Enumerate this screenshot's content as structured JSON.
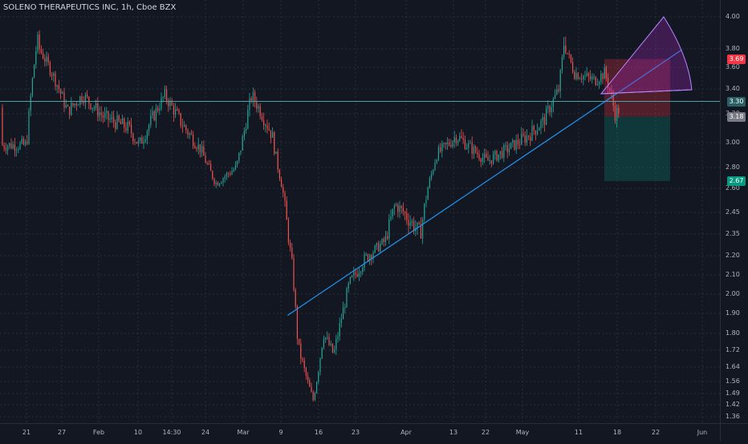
{
  "title": "SOLENO THERAPEUTICS INC, 1h, Cboe BZX",
  "chart_data": {
    "type": "candlestick",
    "title": "SOLENO THERAPEUTICS INC, 1h, Cboe BZX",
    "x_labels": [
      "21",
      "27",
      "Feb",
      "10",
      "14:30",
      "24",
      "Mar",
      "9",
      "16",
      "23",
      "Apr",
      "13",
      "22",
      "May",
      "11",
      "18",
      "22",
      "Jun"
    ],
    "y_ticks": [
      1.36,
      1.42,
      1.49,
      1.56,
      1.64,
      1.72,
      1.8,
      1.9,
      2.0,
      2.1,
      2.2,
      2.35,
      2.45,
      2.6,
      2.8,
      3.0,
      3.2,
      3.4,
      3.6,
      3.8,
      4.0
    ],
    "price_badges": [
      {
        "value": "3.69",
        "color": "#f23645"
      },
      {
        "value": "3.30",
        "color": "#2a5f63"
      },
      {
        "value": "3.18",
        "color": "#787b86"
      },
      {
        "value": "2.67",
        "color": "#089981"
      }
    ],
    "horizontal_line": 3.3,
    "trendline": {
      "from": {
        "x": "Mar 12",
        "y": 1.89
      },
      "to": {
        "x": "May 28",
        "y": 3.79
      }
    },
    "position_box": {
      "entry": 3.18,
      "stop": 3.69,
      "target": 2.67
    },
    "anchor_points": [
      {
        "date": "Jan 21",
        "price": 2.98
      },
      {
        "date": "Jan 23",
        "price": 3.85
      },
      {
        "date": "Jan 26",
        "price": 3.55
      },
      {
        "date": "Jan 29",
        "price": 3.22
      },
      {
        "date": "Feb 1",
        "price": 3.35
      },
      {
        "date": "Feb 5",
        "price": 3.18
      },
      {
        "date": "Feb 10",
        "price": 3.1
      },
      {
        "date": "Feb 12",
        "price": 2.98
      },
      {
        "date": "Feb 17",
        "price": 3.35
      },
      {
        "date": "Feb 20",
        "price": 3.15
      },
      {
        "date": "Feb 24",
        "price": 2.95
      },
      {
        "date": "Feb 27",
        "price": 2.65
      },
      {
        "date": "Mar 2",
        "price": 2.8
      },
      {
        "date": "Mar 5",
        "price": 3.35
      },
      {
        "date": "Mar 9",
        "price": 3.05
      },
      {
        "date": "Mar 11",
        "price": 2.6
      },
      {
        "date": "Mar 13",
        "price": 2.12
      },
      {
        "date": "Mar 14",
        "price": 1.75
      },
      {
        "date": "Mar 17",
        "price": 1.45
      },
      {
        "date": "Mar 19",
        "price": 1.8
      },
      {
        "date": "Mar 21",
        "price": 1.7
      },
      {
        "date": "Mar 24",
        "price": 2.05
      },
      {
        "date": "Mar 27",
        "price": 2.18
      },
      {
        "date": "Mar 31",
        "price": 2.3
      },
      {
        "date": "Apr 2",
        "price": 2.5
      },
      {
        "date": "Apr 7",
        "price": 2.35
      },
      {
        "date": "Apr 10",
        "price": 2.9
      },
      {
        "date": "Apr 14",
        "price": 3.05
      },
      {
        "date": "Apr 20",
        "price": 2.85
      },
      {
        "date": "Apr 24",
        "price": 2.95
      },
      {
        "date": "Apr 28",
        "price": 3.05
      },
      {
        "date": "May 1",
        "price": 3.15
      },
      {
        "date": "May 4",
        "price": 3.4
      },
      {
        "date": "May 5",
        "price": 3.85
      },
      {
        "date": "May 7",
        "price": 3.55
      },
      {
        "date": "May 11",
        "price": 3.48
      },
      {
        "date": "May 13",
        "price": 3.55
      },
      {
        "date": "May 15",
        "price": 3.2
      },
      {
        "date": "May 16",
        "price": 3.25
      }
    ]
  }
}
